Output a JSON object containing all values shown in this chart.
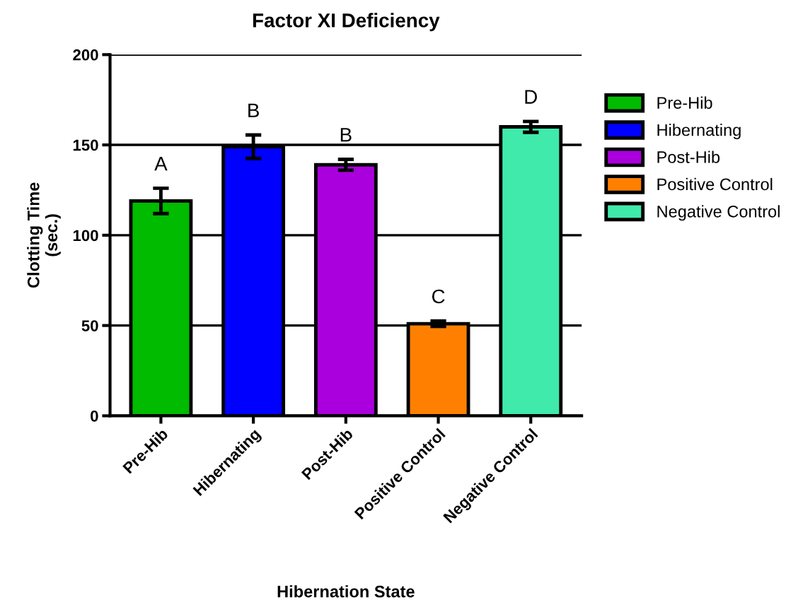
{
  "chart_data": {
    "type": "bar",
    "title": "Factor XI Deficiency",
    "xlabel": "Hibernation State",
    "ylabel": "Clotting Time\n(sec.)",
    "categories": [
      "Pre-Hib",
      "Hibernating",
      "Post-Hib",
      "Positive Control",
      "Negative Control"
    ],
    "stacked": true,
    "series": [
      {
        "name": "Pre-Hib",
        "color": "#00bb00",
        "values": [
          119,
          null,
          null,
          null,
          null
        ],
        "errors": [
          7,
          null,
          null,
          null,
          null
        ]
      },
      {
        "name": "Hibernating",
        "color": "#0000ff",
        "values": [
          null,
          149,
          null,
          null,
          null
        ],
        "errors": [
          null,
          6.5,
          null,
          null,
          null
        ]
      },
      {
        "name": "Post-Hib",
        "color": "#aa00dd",
        "values": [
          null,
          null,
          139,
          null,
          null
        ],
        "errors": [
          null,
          null,
          3,
          null,
          null
        ]
      },
      {
        "name": "Positive Control",
        "color": "#ff8000",
        "values": [
          null,
          null,
          null,
          51,
          null
        ],
        "errors": [
          null,
          null,
          null,
          1.5,
          null
        ]
      },
      {
        "name": "Negative Control",
        "color": "#40eaaa",
        "values": [
          null,
          null,
          null,
          null,
          160
        ],
        "errors": [
          null,
          null,
          null,
          null,
          3
        ]
      }
    ],
    "ylim": [
      0,
      200
    ],
    "yticks": [
      0,
      50,
      100,
      150,
      200
    ],
    "grid": "y",
    "legend": "right",
    "annotations": [
      "A",
      "B",
      "B",
      "C",
      "D"
    ]
  }
}
